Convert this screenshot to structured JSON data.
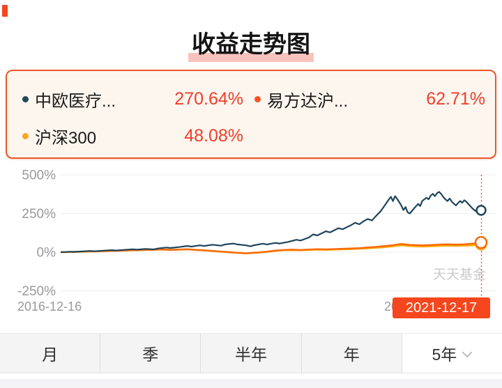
{
  "corner_mark": {
    "color": "#F5461D"
  },
  "header": {
    "title": "收益走势图",
    "highlight_color": "#F9C3BD"
  },
  "legend": {
    "border_color": "#E8572B",
    "bg_color": "#FDF6EE",
    "value_color": "#F03D2C",
    "items": [
      {
        "name": "中欧医疗...",
        "value": "270.64%",
        "dot_color": "#24465B"
      },
      {
        "name": "易方达沪...",
        "value": "62.71%",
        "dot_color": "#F5541F"
      },
      {
        "name": "沪深300",
        "value": "48.08%",
        "dot_color": "#F6A623"
      }
    ]
  },
  "chart_data": {
    "type": "line",
    "title": "收益走势图",
    "grid": true,
    "legend_position": "top",
    "ylim": [
      -250,
      500
    ],
    "y_ticks": [
      "500%",
      "250%",
      "0%",
      "-250%"
    ],
    "y_tick_values": [
      500,
      250,
      0,
      -250
    ],
    "x_axis_left_label": "2016-12-16",
    "x_axis_right_label": "2021-12-17",
    "watermark": "天天基金",
    "cursor_badge": {
      "text": "2021-12-17",
      "bg": "#F5461D",
      "text_color": "#FFFFFF"
    },
    "series": [
      {
        "name": "中欧医疗...",
        "color": "#1F455C",
        "end_value": 270.64,
        "points": [
          [
            0,
            0
          ],
          [
            0.01,
            1
          ],
          [
            0.02,
            3
          ],
          [
            0.03,
            2
          ],
          [
            0.05,
            5
          ],
          [
            0.07,
            8
          ],
          [
            0.08,
            6
          ],
          [
            0.1,
            10
          ],
          [
            0.12,
            13
          ],
          [
            0.13,
            11
          ],
          [
            0.15,
            15
          ],
          [
            0.17,
            19
          ],
          [
            0.18,
            16
          ],
          [
            0.2,
            21
          ],
          [
            0.22,
            18
          ],
          [
            0.23,
            24
          ],
          [
            0.25,
            30
          ],
          [
            0.26,
            27
          ],
          [
            0.28,
            33
          ],
          [
            0.3,
            40
          ],
          [
            0.31,
            36
          ],
          [
            0.33,
            44
          ],
          [
            0.34,
            40
          ],
          [
            0.36,
            48
          ],
          [
            0.38,
            42
          ],
          [
            0.39,
            50
          ],
          [
            0.41,
            56
          ],
          [
            0.42,
            50
          ],
          [
            0.44,
            44
          ],
          [
            0.45,
            38
          ],
          [
            0.46,
            45
          ],
          [
            0.48,
            55
          ],
          [
            0.49,
            50
          ],
          [
            0.51,
            60
          ],
          [
            0.52,
            56
          ],
          [
            0.54,
            66
          ],
          [
            0.56,
            80
          ],
          [
            0.57,
            75
          ],
          [
            0.59,
            95
          ],
          [
            0.6,
            115
          ],
          [
            0.61,
            108
          ],
          [
            0.63,
            135
          ],
          [
            0.64,
            128
          ],
          [
            0.66,
            155
          ],
          [
            0.67,
            148
          ],
          [
            0.69,
            175
          ],
          [
            0.7,
            190
          ],
          [
            0.71,
            180
          ],
          [
            0.72,
            200
          ],
          [
            0.73,
            215
          ],
          [
            0.74,
            205
          ],
          [
            0.75,
            235
          ],
          [
            0.76,
            262
          ],
          [
            0.77,
            300
          ],
          [
            0.78,
            340
          ],
          [
            0.785,
            358
          ],
          [
            0.79,
            330
          ],
          [
            0.795,
            362
          ],
          [
            0.8,
            345
          ],
          [
            0.81,
            302
          ],
          [
            0.815,
            272
          ],
          [
            0.82,
            292
          ],
          [
            0.825,
            258
          ],
          [
            0.83,
            250
          ],
          [
            0.84,
            282
          ],
          [
            0.85,
            312
          ],
          [
            0.855,
            298
          ],
          [
            0.86,
            332
          ],
          [
            0.87,
            352
          ],
          [
            0.875,
            342
          ],
          [
            0.88,
            366
          ],
          [
            0.885,
            377
          ],
          [
            0.89,
            362
          ],
          [
            0.895,
            381
          ],
          [
            0.9,
            390
          ],
          [
            0.905,
            376
          ],
          [
            0.91,
            357
          ],
          [
            0.915,
            342
          ],
          [
            0.92,
            330
          ],
          [
            0.925,
            347
          ],
          [
            0.93,
            327
          ],
          [
            0.94,
            302
          ],
          [
            0.945,
            317
          ],
          [
            0.95,
            331
          ],
          [
            0.955,
            320
          ],
          [
            0.96,
            336
          ],
          [
            0.965,
            326
          ],
          [
            0.97,
            311
          ],
          [
            0.975,
            296
          ],
          [
            0.98,
            281
          ],
          [
            0.985,
            270
          ],
          [
            0.99,
            261
          ],
          [
            0.995,
            266
          ],
          [
            1,
            270.64
          ]
        ]
      },
      {
        "name": "易方达沪...",
        "color": "#F96B05",
        "end_value": 62.71,
        "points": [
          [
            0,
            0
          ],
          [
            0.02,
            1
          ],
          [
            0.04,
            3
          ],
          [
            0.06,
            4
          ],
          [
            0.08,
            6
          ],
          [
            0.1,
            7
          ],
          [
            0.12,
            9
          ],
          [
            0.14,
            10
          ],
          [
            0.16,
            12
          ],
          [
            0.18,
            13
          ],
          [
            0.2,
            15
          ],
          [
            0.22,
            16
          ],
          [
            0.24,
            18
          ],
          [
            0.26,
            15
          ],
          [
            0.28,
            17
          ],
          [
            0.3,
            19
          ],
          [
            0.32,
            15
          ],
          [
            0.34,
            12
          ],
          [
            0.36,
            8
          ],
          [
            0.38,
            4
          ],
          [
            0.4,
            0
          ],
          [
            0.42,
            -4
          ],
          [
            0.44,
            -7
          ],
          [
            0.45,
            -5
          ],
          [
            0.47,
            -2
          ],
          [
            0.49,
            3
          ],
          [
            0.51,
            10
          ],
          [
            0.53,
            14
          ],
          [
            0.55,
            16
          ],
          [
            0.57,
            14
          ],
          [
            0.59,
            17
          ],
          [
            0.61,
            19
          ],
          [
            0.63,
            18
          ],
          [
            0.65,
            20
          ],
          [
            0.67,
            22
          ],
          [
            0.69,
            24
          ],
          [
            0.71,
            26
          ],
          [
            0.73,
            30
          ],
          [
            0.75,
            34
          ],
          [
            0.77,
            39
          ],
          [
            0.79,
            45
          ],
          [
            0.8,
            49
          ],
          [
            0.81,
            53
          ],
          [
            0.82,
            50
          ],
          [
            0.83,
            47
          ],
          [
            0.84,
            46
          ],
          [
            0.86,
            44
          ],
          [
            0.88,
            46
          ],
          [
            0.9,
            49
          ],
          [
            0.92,
            51
          ],
          [
            0.94,
            49
          ],
          [
            0.96,
            51
          ],
          [
            0.98,
            55
          ],
          [
            0.99,
            58
          ],
          [
            1,
            62.71
          ]
        ]
      },
      {
        "name": "沪深300",
        "color": "#FBAD14",
        "end_value": 48.08,
        "points": [
          [
            0,
            0
          ],
          [
            0.02,
            1
          ],
          [
            0.04,
            2
          ],
          [
            0.06,
            4
          ],
          [
            0.08,
            5
          ],
          [
            0.1,
            6
          ],
          [
            0.12,
            8
          ],
          [
            0.14,
            9
          ],
          [
            0.16,
            11
          ],
          [
            0.18,
            12
          ],
          [
            0.2,
            14
          ],
          [
            0.22,
            15
          ],
          [
            0.24,
            17
          ],
          [
            0.26,
            14
          ],
          [
            0.28,
            16
          ],
          [
            0.3,
            18
          ],
          [
            0.32,
            14
          ],
          [
            0.34,
            11
          ],
          [
            0.36,
            7
          ],
          [
            0.38,
            3
          ],
          [
            0.4,
            -1
          ],
          [
            0.42,
            -5
          ],
          [
            0.44,
            -8
          ],
          [
            0.45,
            -6
          ],
          [
            0.47,
            -3
          ],
          [
            0.49,
            2
          ],
          [
            0.51,
            8
          ],
          [
            0.53,
            12
          ],
          [
            0.55,
            13
          ],
          [
            0.57,
            12
          ],
          [
            0.59,
            14
          ],
          [
            0.61,
            16
          ],
          [
            0.63,
            15
          ],
          [
            0.65,
            17
          ],
          [
            0.67,
            18
          ],
          [
            0.69,
            20
          ],
          [
            0.71,
            22
          ],
          [
            0.73,
            25
          ],
          [
            0.75,
            28
          ],
          [
            0.77,
            32
          ],
          [
            0.79,
            37
          ],
          [
            0.8,
            41
          ],
          [
            0.81,
            44
          ],
          [
            0.82,
            42
          ],
          [
            0.83,
            39
          ],
          [
            0.84,
            38
          ],
          [
            0.86,
            36
          ],
          [
            0.88,
            38
          ],
          [
            0.9,
            40
          ],
          [
            0.92,
            42
          ],
          [
            0.94,
            40
          ],
          [
            0.96,
            42
          ],
          [
            0.98,
            44
          ],
          [
            0.99,
            46
          ],
          [
            1,
            48.08
          ]
        ]
      }
    ]
  },
  "tabs": {
    "selected": "5年",
    "items": [
      {
        "label": "月",
        "selected": false
      },
      {
        "label": "季",
        "selected": false
      },
      {
        "label": "半年",
        "selected": false
      },
      {
        "label": "年",
        "selected": false
      },
      {
        "label": "5年",
        "selected": true,
        "has_chevron": true
      }
    ]
  }
}
